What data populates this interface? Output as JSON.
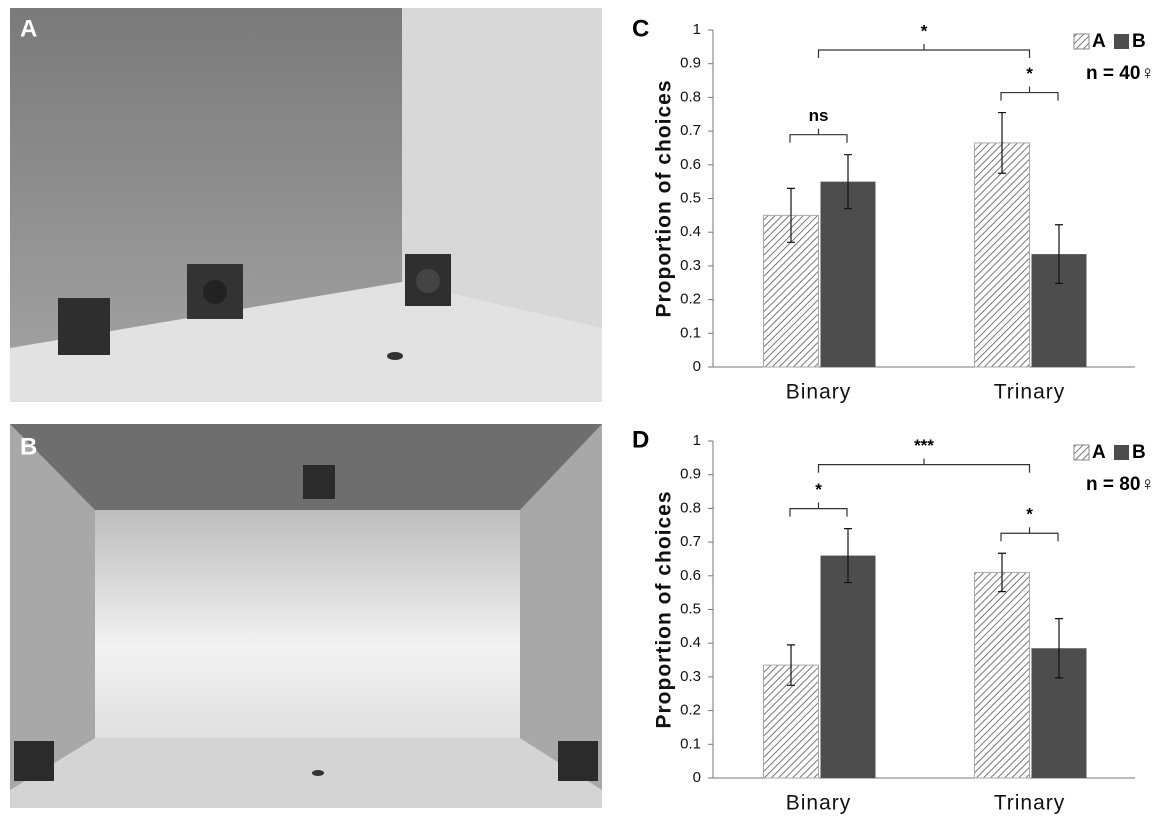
{
  "images": [
    {
      "label": "A"
    },
    {
      "label": "B"
    }
  ],
  "chart_data": [
    {
      "type": "bar",
      "panel": "C",
      "ylabel": "Proportion of choices",
      "categories": [
        "Binary",
        "Trinary"
      ],
      "series": [
        {
          "name": "A",
          "color": "#8a8a8a",
          "hatch": true,
          "values": [
            0.45,
            0.665
          ],
          "errors": [
            0.08,
            0.09
          ]
        },
        {
          "name": "B",
          "color": "#4d4d4d",
          "hatch": false,
          "values": [
            0.55,
            0.335
          ],
          "errors": [
            0.08,
            0.087
          ]
        }
      ],
      "ylim": [
        0,
        1
      ],
      "yticks": [
        0,
        0.1,
        0.2,
        0.3,
        0.4,
        0.5,
        0.6,
        0.7,
        0.8,
        0.9,
        1
      ],
      "legend": "upper right",
      "note": "n = 40♀",
      "annotations": [
        "ns",
        "*",
        "*"
      ]
    },
    {
      "type": "bar",
      "panel": "D",
      "ylabel": "Proportion of choices",
      "categories": [
        "Binary",
        "Trinary"
      ],
      "series": [
        {
          "name": "A",
          "color": "#8a8a8a",
          "hatch": true,
          "values": [
            0.335,
            0.61
          ],
          "errors": [
            0.06,
            0.057
          ]
        },
        {
          "name": "B",
          "color": "#4d4d4d",
          "hatch": false,
          "values": [
            0.66,
            0.385
          ],
          "errors": [
            0.08,
            0.088
          ]
        }
      ],
      "ylim": [
        0,
        1
      ],
      "yticks": [
        0,
        0.1,
        0.2,
        0.3,
        0.4,
        0.5,
        0.6,
        0.7,
        0.8,
        0.9,
        1
      ],
      "legend": "upper right",
      "note": "n = 80♀",
      "annotations": [
        "*",
        "*",
        "***"
      ]
    }
  ]
}
